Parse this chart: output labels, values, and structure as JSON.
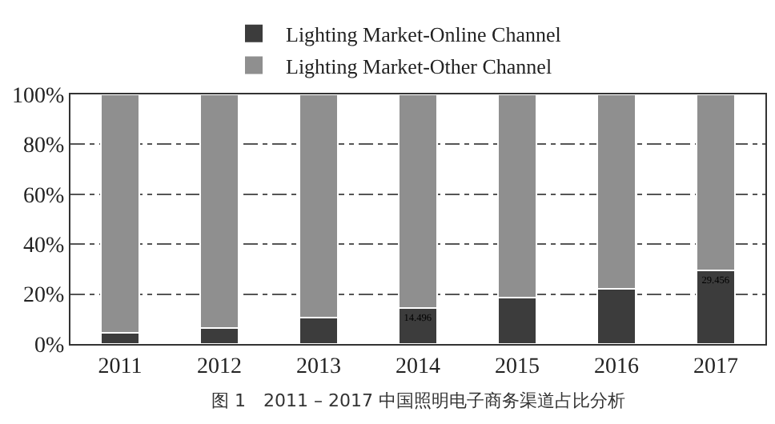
{
  "chart_data": {
    "type": "bar",
    "stacked": true,
    "categories": [
      "2011",
      "2012",
      "2013",
      "2014",
      "2015",
      "2016",
      "2017"
    ],
    "series": [
      {
        "name": "Lighting Market-Online Channel",
        "color": "#3c3c3c",
        "values": [
          4.5,
          6.5,
          10.5,
          14.496,
          18.5,
          22,
          29.456
        ],
        "value_labels": [
          null,
          null,
          null,
          "14.496",
          null,
          null,
          "29.456"
        ]
      },
      {
        "name": "Lighting Market-Other Channel",
        "color": "#8f8f8f",
        "values": [
          95.5,
          93.5,
          89.5,
          85.5,
          81.5,
          78,
          70.5
        ]
      }
    ],
    "ylim": [
      0,
      100
    ],
    "yticks": [
      {
        "value": 0,
        "label": "0%"
      },
      {
        "value": 20,
        "label": "20%"
      },
      {
        "value": 40,
        "label": "40%"
      },
      {
        "value": 60,
        "label": "60%"
      },
      {
        "value": 80,
        "label": "80%"
      },
      {
        "value": 100,
        "label": "100%"
      }
    ],
    "grid": "y",
    "line_style": "dashed",
    "legend": "top",
    "annotations": [
      "图 1　2011 – 2017 中国照明电子商务渠道占比分析"
    ]
  }
}
